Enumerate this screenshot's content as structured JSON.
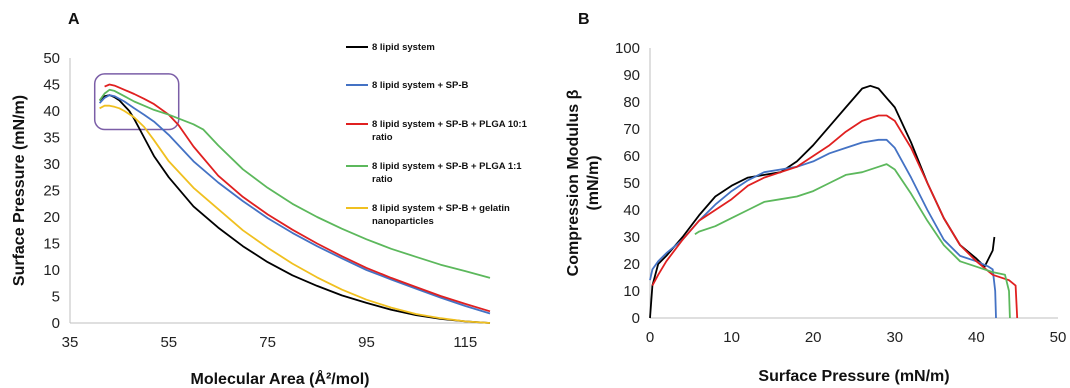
{
  "chart_data": [
    {
      "panel": "A",
      "type": "line",
      "title": "",
      "xlabel": "Molecular Area (Å²/mol)",
      "ylabel": "Surface Pressure (mN/m)",
      "xlim": [
        35,
        120
      ],
      "ylim": [
        0,
        50
      ],
      "x_ticks": [
        35,
        55,
        75,
        95,
        115
      ],
      "y_ticks": [
        0,
        5,
        10,
        15,
        20,
        25,
        30,
        35,
        40,
        45,
        50
      ],
      "grid": false,
      "legend": "right",
      "annotation": "rounded rectangle highlighting the collapse region near 41-57 Å²/mol, 37-46 mN/m",
      "highlight_box": {
        "x": [
          40,
          57
        ],
        "y": [
          36.5,
          47
        ]
      },
      "series": [
        {
          "name": "8 lipid system",
          "color": "#000000",
          "x": [
            41,
            42,
            43,
            44,
            45,
            46,
            47,
            48,
            50,
            52,
            55,
            60,
            65,
            70,
            75,
            80,
            85,
            90,
            95,
            100,
            105,
            110,
            115,
            120
          ],
          "y": [
            42,
            42.8,
            43,
            42.6,
            42,
            41,
            40,
            38.5,
            35,
            31.5,
            27.5,
            22,
            18,
            14.5,
            11.5,
            9,
            7,
            5.2,
            3.8,
            2.5,
            1.5,
            0.8,
            0.3,
            0
          ]
        },
        {
          "name": "8 lipid system + SP-B",
          "color": "#4472c4",
          "x": [
            41,
            42,
            43,
            44,
            46,
            48,
            50,
            52,
            55,
            60,
            65,
            70,
            75,
            80,
            85,
            90,
            95,
            100,
            105,
            110,
            115,
            120
          ],
          "y": [
            41.5,
            42.5,
            43,
            42.8,
            41.8,
            40.5,
            39.3,
            38,
            35.5,
            30.5,
            26.5,
            23,
            19.8,
            17,
            14.5,
            12.2,
            10,
            8.2,
            6.5,
            4.8,
            3.2,
            1.8
          ]
        },
        {
          "name": "8 lipid system + SP-B + PLGA 10:1 ratio",
          "color": "#e02020",
          "x": [
            42,
            43,
            44,
            46,
            48,
            50,
            52,
            55,
            57,
            60,
            65,
            70,
            75,
            80,
            85,
            90,
            95,
            100,
            105,
            110,
            115,
            120
          ],
          "y": [
            44.6,
            45,
            44.8,
            44,
            43.2,
            42.3,
            41.3,
            39.3,
            37.3,
            33.3,
            27.8,
            23.8,
            20.5,
            17.6,
            15,
            12.6,
            10.4,
            8.5,
            6.8,
            5.1,
            3.6,
            2.2
          ]
        },
        {
          "name": "8 lipid system + SP-B + PLGA 1:1 ratio",
          "color": "#5cb85c",
          "x": [
            41,
            42,
            43,
            44,
            46,
            48,
            50,
            52,
            55,
            60,
            62,
            65,
            70,
            75,
            80,
            85,
            90,
            95,
            100,
            105,
            110,
            115,
            120
          ],
          "y": [
            42,
            43.3,
            44,
            43.8,
            42.8,
            41.8,
            41,
            40.2,
            39.3,
            37.5,
            36.5,
            33.5,
            29,
            25.5,
            22.5,
            20,
            17.8,
            15.8,
            14,
            12.5,
            11,
            9.8,
            8.5
          ]
        },
        {
          "name": "8 lipid system + SP-B + gelatin nanoparticles",
          "color": "#f0c020",
          "x": [
            41,
            42,
            43,
            44,
            45,
            46,
            48,
            50,
            52,
            55,
            60,
            65,
            70,
            75,
            80,
            85,
            90,
            95,
            100,
            105,
            110,
            115,
            120
          ],
          "y": [
            40.5,
            41,
            41,
            40.8,
            40.5,
            40,
            38.8,
            37,
            34.5,
            30.5,
            25.5,
            21.5,
            17.5,
            14.2,
            11.2,
            8.6,
            6.3,
            4.4,
            2.9,
            1.7,
            0.9,
            0.3,
            0
          ]
        }
      ]
    },
    {
      "panel": "B",
      "type": "line",
      "title": "",
      "xlabel": "Surface Pressure (mN/m)",
      "ylabel": "Compression Modulus β (mN/m)",
      "xlim": [
        0,
        50
      ],
      "ylim": [
        0,
        100
      ],
      "x_ticks": [
        0,
        10,
        20,
        30,
        40,
        50
      ],
      "y_ticks": [
        0,
        10,
        20,
        30,
        40,
        50,
        60,
        70,
        80,
        90,
        100
      ],
      "grid": false,
      "legend": "none",
      "series": [
        {
          "name": "",
          "color": "#000000",
          "x": [
            0,
            0.3,
            1,
            2,
            4,
            6,
            8,
            10,
            12,
            14,
            16,
            18,
            20,
            22,
            24,
            26,
            27,
            28,
            30,
            32,
            34,
            36,
            38,
            40,
            41,
            41.5,
            42,
            42.2
          ],
          "y": [
            0,
            12,
            20,
            23,
            30,
            38,
            45,
            49,
            52,
            53,
            54,
            58,
            64,
            71,
            78,
            85,
            86,
            85,
            78,
            65,
            50,
            37,
            27,
            22,
            19,
            22,
            25,
            30
          ]
        },
        {
          "name": "",
          "color": "#4472c4",
          "x": [
            0,
            0.3,
            1,
            2,
            4,
            6,
            8,
            10,
            12,
            14,
            16,
            18,
            20,
            22,
            24,
            26,
            28,
            29,
            30,
            32,
            34,
            36,
            38,
            40,
            41.5,
            42,
            42.3,
            42.4
          ],
          "y": [
            14,
            18,
            21,
            24,
            29,
            36,
            42,
            47,
            51,
            54,
            55,
            56,
            58,
            61,
            63,
            65,
            66,
            66,
            63,
            52,
            40,
            29,
            23,
            21,
            19,
            18,
            10,
            0
          ]
        },
        {
          "name": "",
          "color": "#e02020",
          "x": [
            0.3,
            1,
            2,
            4,
            6,
            8,
            10,
            12,
            14,
            16,
            18,
            20,
            22,
            24,
            26,
            28,
            29,
            30,
            32,
            34,
            36,
            38,
            40,
            42,
            44,
            44.8,
            45
          ],
          "y": [
            12,
            16,
            21,
            29,
            36,
            40,
            44,
            49,
            52,
            54,
            56,
            60,
            64,
            69,
            73,
            75,
            75,
            73,
            63,
            50,
            37,
            27,
            21,
            16,
            14,
            12,
            0
          ]
        },
        {
          "name": "",
          "color": "#5cb85c",
          "x": [
            5.5,
            6,
            8,
            10,
            12,
            14,
            16,
            18,
            20,
            22,
            24,
            26,
            28,
            29,
            30,
            32,
            34,
            36,
            38,
            40,
            42,
            43.5,
            44,
            44.1
          ],
          "y": [
            31,
            32,
            34,
            37,
            40,
            43,
            44,
            45,
            47,
            50,
            53,
            54,
            56,
            57,
            55,
            46,
            36,
            27,
            21,
            19,
            17,
            16,
            10,
            0
          ]
        }
      ]
    }
  ]
}
